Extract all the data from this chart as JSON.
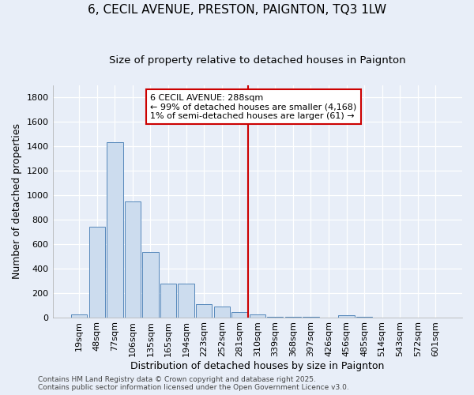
{
  "title": "6, CECIL AVENUE, PRESTON, PAIGNTON, TQ3 1LW",
  "subtitle": "Size of property relative to detached houses in Paignton",
  "xlabel": "Distribution of detached houses by size in Paignton",
  "ylabel": "Number of detached properties",
  "categories": [
    "19sqm",
    "48sqm",
    "77sqm",
    "106sqm",
    "135sqm",
    "165sqm",
    "194sqm",
    "223sqm",
    "252sqm",
    "281sqm",
    "310sqm",
    "339sqm",
    "368sqm",
    "397sqm",
    "426sqm",
    "456sqm",
    "485sqm",
    "514sqm",
    "543sqm",
    "572sqm",
    "601sqm"
  ],
  "values": [
    20,
    740,
    1435,
    950,
    535,
    275,
    275,
    105,
    85,
    45,
    25,
    5,
    5,
    5,
    0,
    15,
    5,
    0,
    0,
    0,
    0
  ],
  "bar_color": "#ccdcee",
  "bar_edge_color": "#5588bb",
  "background_color": "#e8eef8",
  "grid_color": "#ffffff",
  "red_line_x": 9.5,
  "annotation_title": "6 CECIL AVENUE: 288sqm",
  "annotation_line1": "← 99% of detached houses are smaller (4,168)",
  "annotation_line2": "1% of semi-detached houses are larger (61) →",
  "annotation_box_color": "#ffffff",
  "annotation_border_color": "#cc0000",
  "red_line_color": "#cc0000",
  "footer_line1": "Contains HM Land Registry data © Crown copyright and database right 2025.",
  "footer_line2": "Contains public sector information licensed under the Open Government Licence v3.0.",
  "ylim": [
    0,
    1900
  ],
  "yticks": [
    0,
    200,
    400,
    600,
    800,
    1000,
    1200,
    1400,
    1600,
    1800
  ],
  "title_fontsize": 11,
  "subtitle_fontsize": 9.5,
  "axis_label_fontsize": 9,
  "tick_fontsize": 8,
  "footer_fontsize": 6.5,
  "annotation_fontsize": 8
}
